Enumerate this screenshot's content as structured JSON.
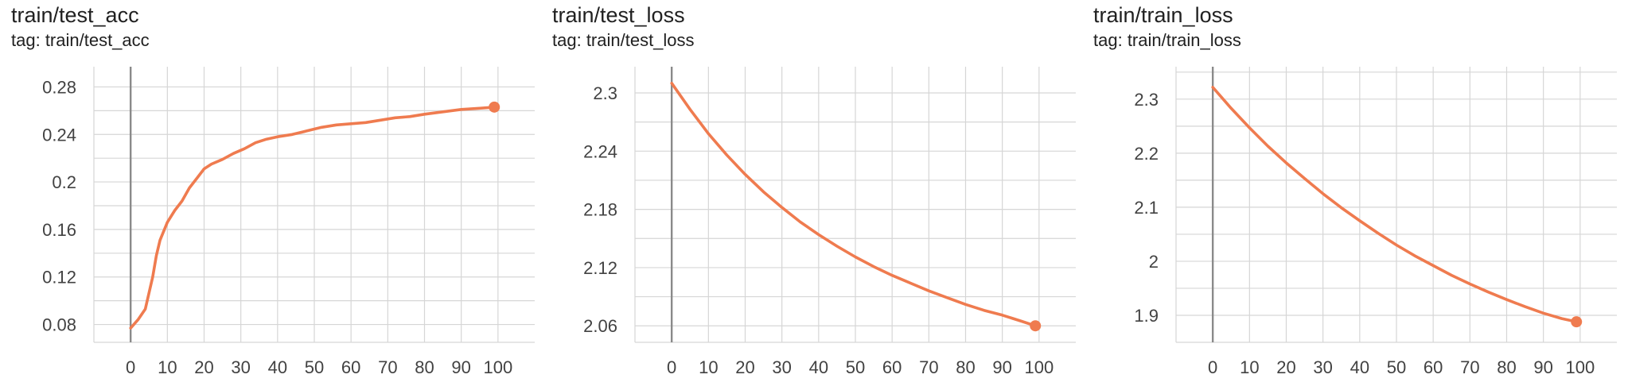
{
  "colors": {
    "series": "#ef7b4f",
    "grid": "#d6d6d6",
    "zero_line": "#8a8a8a",
    "text": "#212121"
  },
  "tag_prefix": "tag: ",
  "charts": [
    {
      "title": "train/test_acc",
      "tag": "train/test_acc"
    },
    {
      "title": "train/test_loss",
      "tag": "train/test_loss"
    },
    {
      "title": "train/train_loss",
      "tag": "train/train_loss"
    }
  ],
  "chart_data": [
    {
      "type": "line",
      "title": "train/test_acc",
      "xlabel": "",
      "ylabel": "",
      "xlim": [
        -10,
        110
      ],
      "ylim": [
        0.065,
        0.297
      ],
      "xticks": [
        0,
        10,
        20,
        30,
        40,
        50,
        60,
        70,
        80,
        90,
        100
      ],
      "yticks": [
        0.08,
        0.12,
        0.16,
        0.2,
        0.24,
        0.28
      ],
      "ytick_labels": [
        "0.08",
        "0.12",
        "0.16",
        "0.2",
        "0.24",
        "0.28"
      ],
      "series": [
        {
          "x": [
            0,
            2,
            4,
            6,
            7,
            8,
            10,
            12,
            14,
            16,
            18,
            20,
            22,
            25,
            28,
            31,
            34,
            37,
            40,
            44,
            48,
            52,
            56,
            60,
            64,
            68,
            72,
            76,
            80,
            85,
            90,
            95,
            99
          ],
          "y": [
            0.077,
            0.084,
            0.093,
            0.12,
            0.138,
            0.151,
            0.166,
            0.176,
            0.184,
            0.195,
            0.203,
            0.211,
            0.215,
            0.219,
            0.224,
            0.228,
            0.233,
            0.236,
            0.238,
            0.24,
            0.243,
            0.246,
            0.248,
            0.249,
            0.25,
            0.252,
            0.254,
            0.255,
            0.257,
            0.259,
            0.261,
            0.262,
            0.263
          ]
        }
      ]
    },
    {
      "type": "line",
      "title": "train/test_loss",
      "xlabel": "",
      "ylabel": "",
      "xlim": [
        -10,
        110
      ],
      "ylim": [
        2.043,
        2.327
      ],
      "xticks": [
        0,
        10,
        20,
        30,
        40,
        50,
        60,
        70,
        80,
        90,
        100
      ],
      "yticks": [
        2.06,
        2.12,
        2.18,
        2.24,
        2.3
      ],
      "ytick_labels": [
        "2.06",
        "2.12",
        "2.18",
        "2.24",
        "2.3"
      ],
      "series": [
        {
          "x": [
            0,
            5,
            10,
            15,
            20,
            25,
            30,
            35,
            40,
            45,
            50,
            55,
            60,
            65,
            70,
            75,
            80,
            85,
            90,
            95,
            99
          ],
          "y": [
            2.31,
            2.283,
            2.258,
            2.236,
            2.216,
            2.198,
            2.182,
            2.167,
            2.154,
            2.142,
            2.131,
            2.121,
            2.112,
            2.104,
            2.096,
            2.089,
            2.082,
            2.076,
            2.071,
            2.065,
            2.06
          ]
        }
      ]
    },
    {
      "type": "line",
      "title": "train/train_loss",
      "xlabel": "",
      "ylabel": "",
      "xlim": [
        -10,
        110
      ],
      "ylim": [
        1.85,
        2.36
      ],
      "xticks": [
        0,
        10,
        20,
        30,
        40,
        50,
        60,
        70,
        80,
        90,
        100
      ],
      "yticks": [
        1.9,
        2,
        2.1,
        2.2,
        2.3
      ],
      "ytick_labels": [
        "1.9",
        "2",
        "2.1",
        "2.2",
        "2.3"
      ],
      "series": [
        {
          "x": [
            0,
            5,
            10,
            15,
            20,
            25,
            30,
            35,
            40,
            45,
            50,
            55,
            60,
            65,
            70,
            75,
            80,
            85,
            90,
            95,
            99
          ],
          "y": [
            2.322,
            2.283,
            2.247,
            2.213,
            2.182,
            2.153,
            2.125,
            2.099,
            2.075,
            2.052,
            2.03,
            2.01,
            1.992,
            1.974,
            1.958,
            1.943,
            1.929,
            1.916,
            1.904,
            1.894,
            1.888
          ]
        }
      ]
    }
  ]
}
